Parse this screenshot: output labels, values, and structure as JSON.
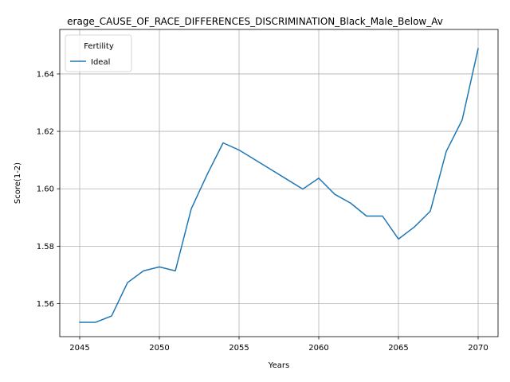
{
  "chart_data": {
    "type": "line",
    "title": "erage_CAUSE_OF_RACE_DIFFERENCES_DISCRIMINATION_Black_Male_Below_Av",
    "xlabel": "Years",
    "ylabel": "Score(1-2)",
    "xlim": [
      2043.75,
      2071.25
    ],
    "ylim": [
      1.5485,
      1.6555
    ],
    "xticks": [
      2045,
      2050,
      2055,
      2060,
      2065,
      2070
    ],
    "yticks": [
      1.56,
      1.58,
      1.6,
      1.62,
      1.64
    ],
    "grid": true,
    "legend": {
      "title": "Fertility",
      "placement": "top-left"
    },
    "series": [
      {
        "name": "Ideal",
        "color": "#1f77b4",
        "x": [
          2045,
          2046,
          2047,
          2048,
          2049,
          2050,
          2051,
          2052,
          2053,
          2054,
          2055,
          2056,
          2057,
          2058,
          2059,
          2060,
          2061,
          2062,
          2063,
          2064,
          2065,
          2066,
          2067,
          2068,
          2069,
          2070
        ],
        "y": [
          1.5535,
          1.5535,
          1.5557,
          1.5673,
          1.5714,
          1.5728,
          1.5714,
          1.593,
          1.605,
          1.616,
          1.6135,
          1.6101,
          1.6067,
          1.6033,
          1.5999,
          1.6037,
          1.5981,
          1.595,
          1.5905,
          1.5905,
          1.5825,
          1.5867,
          1.5922,
          1.613,
          1.624,
          1.6488
        ]
      }
    ]
  }
}
